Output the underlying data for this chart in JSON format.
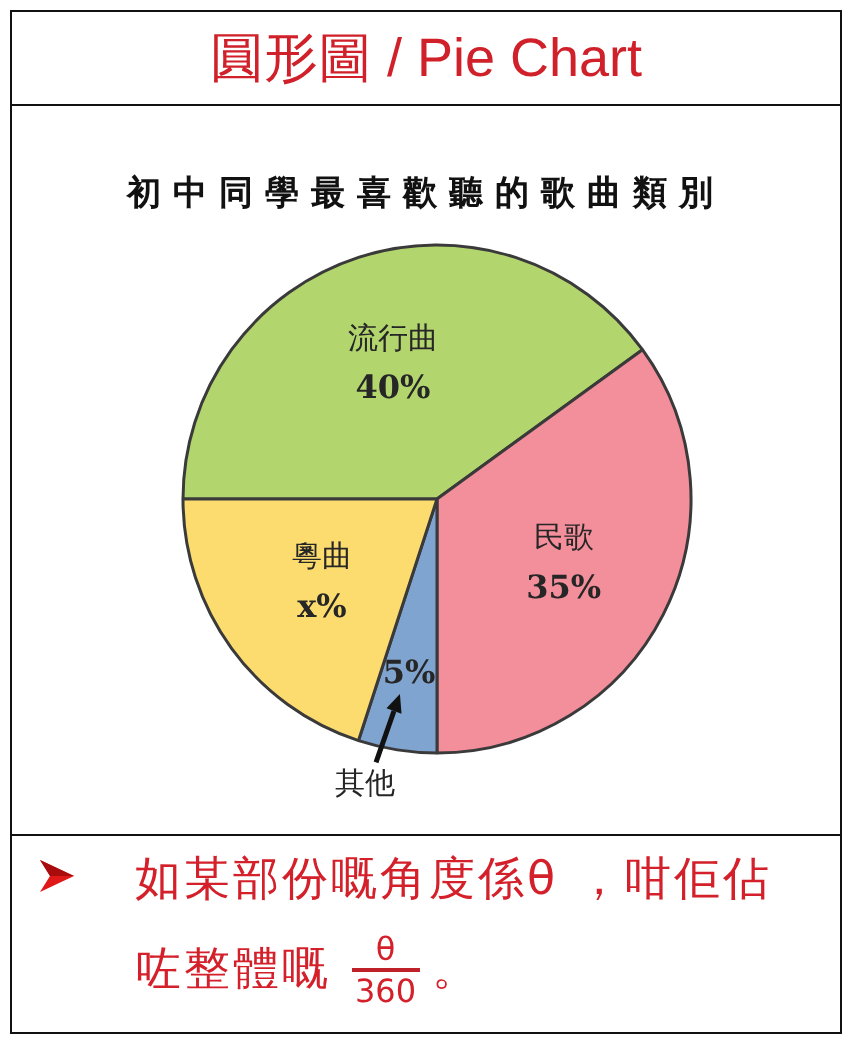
{
  "chart_data": {
    "type": "pie",
    "title": "圓形圖 / Pie Chart",
    "subtitle": "初中同學最喜歡聽的歌曲類別",
    "categories": [
      "流行曲",
      "民歌",
      "其他",
      "粵曲"
    ],
    "values": [
      40,
      35,
      5,
      20
    ],
    "colors": [
      "#b3d56e",
      "#f38e9b",
      "#80a4d0",
      "#fcdc6f"
    ],
    "value_labels": [
      "40%",
      "35%",
      "5%",
      "x%"
    ],
    "annotations": [
      "如某部份嘅角度係θ ，咁佢佔",
      "咗整體嘅",
      "θ",
      "360",
      "。"
    ]
  }
}
